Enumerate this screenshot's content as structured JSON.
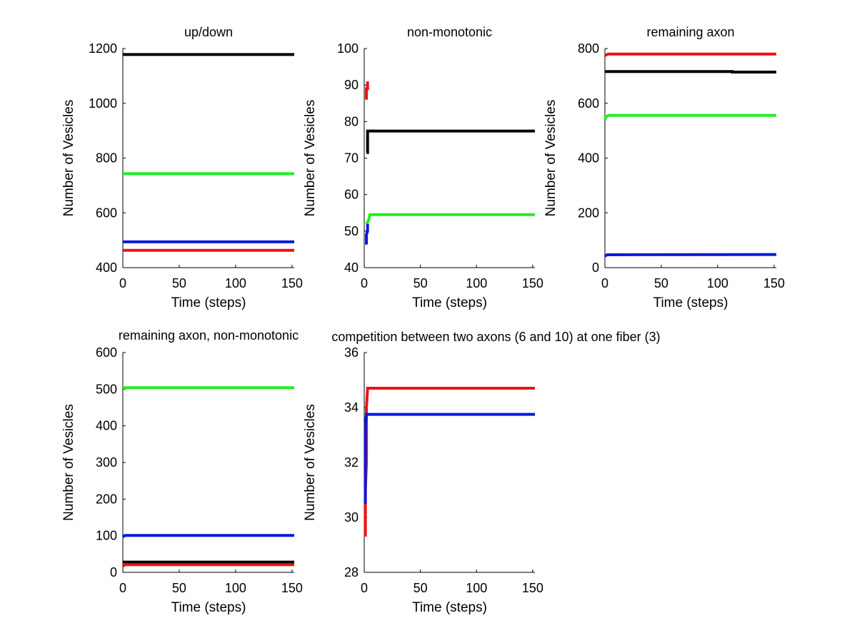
{
  "chart_data": [
    {
      "type": "line",
      "title": "up/down",
      "xlabel": "Time (steps)",
      "ylabel": "Number of Vesicles",
      "xlim": [
        0,
        152
      ],
      "ylim": [
        400,
        1200
      ],
      "xticks": [
        0,
        50,
        100,
        150
      ],
      "yticks": [
        400,
        600,
        800,
        1000,
        1200
      ],
      "series": [
        {
          "name": "black",
          "color": "#000000",
          "x": [
            0,
            152
          ],
          "y": [
            1178,
            1178
          ]
        },
        {
          "name": "green",
          "color": "#22ee22",
          "x": [
            0,
            152
          ],
          "y": [
            743,
            743
          ]
        },
        {
          "name": "blue",
          "color": "#0b18d9",
          "x": [
            0,
            152
          ],
          "y": [
            494,
            494
          ]
        },
        {
          "name": "red",
          "color": "#ee1111",
          "x": [
            0,
            152
          ],
          "y": [
            463,
            463
          ]
        }
      ]
    },
    {
      "type": "line",
      "title": "non-monotonic",
      "xlabel": "Time (steps)",
      "ylabel": "Number of Vesicles",
      "xlim": [
        0,
        152
      ],
      "ylim": [
        40,
        100
      ],
      "xticks": [
        0,
        50,
        100,
        150
      ],
      "yticks": [
        40,
        50,
        60,
        70,
        80,
        90,
        100
      ],
      "series": [
        {
          "name": "red",
          "color": "#ee1111",
          "x": [
            2,
            2,
            3,
            3
          ],
          "y": [
            86,
            89,
            89,
            91
          ]
        },
        {
          "name": "black",
          "color": "#000000",
          "x": [
            2,
            3,
            3,
            152
          ],
          "y": [
            71.5,
            71.5,
            77.4,
            77.4
          ]
        },
        {
          "name": "green",
          "color": "#22ee22",
          "x": [
            2,
            4,
            5,
            152
          ],
          "y": [
            52,
            53,
            54.5,
            54.5
          ]
        },
        {
          "name": "blue",
          "color": "#0b18d9",
          "x": [
            2,
            2,
            3,
            3
          ],
          "y": [
            46.3,
            49,
            50,
            52
          ]
        }
      ]
    },
    {
      "type": "line",
      "title": "remaining axon",
      "xlabel": "Time (steps)",
      "ylabel": "Number of Vesicles",
      "xlim": [
        0,
        152
      ],
      "ylim": [
        0,
        800
      ],
      "xticks": [
        0,
        50,
        100,
        150
      ],
      "yticks": [
        0,
        200,
        400,
        600,
        800
      ],
      "series": [
        {
          "name": "red",
          "color": "#ee1111",
          "x": [
            0,
            3,
            152
          ],
          "y": [
            775,
            780,
            780
          ]
        },
        {
          "name": "black",
          "color": "#000000",
          "x": [
            0,
            113,
            113,
            152
          ],
          "y": [
            716,
            716,
            714,
            714
          ]
        },
        {
          "name": "green",
          "color": "#22ee22",
          "x": [
            0,
            1,
            3,
            152
          ],
          "y": [
            540,
            550,
            556,
            556
          ]
        },
        {
          "name": "blue",
          "color": "#0b18d9",
          "x": [
            0,
            2,
            152
          ],
          "y": [
            42,
            47,
            48
          ]
        }
      ]
    },
    {
      "type": "line",
      "title": "remaining axon, non-monotonic",
      "xlabel": "Time (steps)",
      "ylabel": "Number of Vesicles",
      "xlim": [
        0,
        152
      ],
      "ylim": [
        0,
        600
      ],
      "xticks": [
        0,
        50,
        100,
        150
      ],
      "yticks": [
        0,
        100,
        200,
        300,
        400,
        500,
        600
      ],
      "series": [
        {
          "name": "green",
          "color": "#22ee22",
          "x": [
            0,
            152
          ],
          "y": [
            504,
            504
          ]
        },
        {
          "name": "blue",
          "color": "#0b18d9",
          "x": [
            0,
            2,
            152
          ],
          "y": [
            97,
            101,
            101
          ]
        },
        {
          "name": "black",
          "color": "#000000",
          "x": [
            0,
            152
          ],
          "y": [
            28,
            28
          ]
        },
        {
          "name": "red",
          "color": "#ee1111",
          "x": [
            0,
            2,
            152
          ],
          "y": [
            17,
            21,
            21
          ]
        }
      ]
    },
    {
      "type": "line",
      "title": "competition between two axons (6 and 10) at one fiber (3)",
      "xlabel": "Time (steps)",
      "ylabel": "Number of Vesicles",
      "xlim": [
        0,
        152
      ],
      "ylim": [
        28,
        36
      ],
      "xticks": [
        0,
        50,
        100,
        150
      ],
      "yticks": [
        28,
        30,
        32,
        34,
        36
      ],
      "series": [
        {
          "name": "red",
          "color": "#ee1111",
          "x": [
            1,
            1,
            2,
            2,
            3,
            152
          ],
          "y": [
            29.3,
            31,
            32,
            34,
            34.7,
            34.7
          ]
        },
        {
          "name": "blue",
          "color": "#0b18d9",
          "x": [
            1,
            1,
            2,
            152
          ],
          "y": [
            30.5,
            33.3,
            33.75,
            33.75
          ]
        }
      ]
    }
  ]
}
